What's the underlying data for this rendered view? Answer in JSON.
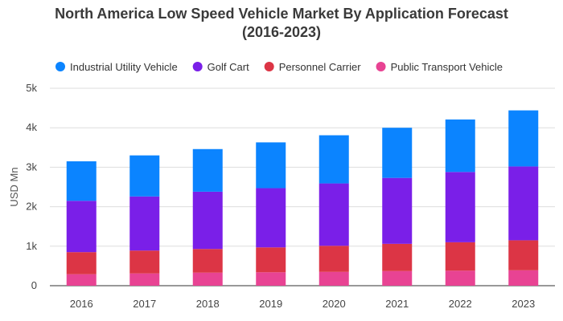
{
  "chart_data": {
    "type": "bar",
    "stacked": true,
    "title": "North America Low Speed Vehicle Market By Application Forecast",
    "subtitle": "(2016-2023)",
    "xlabel": "",
    "ylabel": "USD Mn",
    "ylim": [
      0,
      5000
    ],
    "yticks": [
      0,
      1000,
      2000,
      3000,
      4000,
      5000
    ],
    "ytick_labels": [
      "0",
      "1k",
      "2k",
      "3k",
      "4k",
      "5k"
    ],
    "categories": [
      "2016",
      "2017",
      "2018",
      "2019",
      "2020",
      "2021",
      "2022",
      "2023"
    ],
    "grid": true,
    "legend_position": "top",
    "series": [
      {
        "name": "Public Transport Vehicle",
        "color": "#e84393",
        "values": [
          290,
          310,
          330,
          340,
          350,
          370,
          380,
          390
        ]
      },
      {
        "name": "Personnel Carrier",
        "color": "#dc3545",
        "values": [
          560,
          580,
          600,
          630,
          660,
          690,
          720,
          760
        ]
      },
      {
        "name": "Golf Cart",
        "color": "#7a1fe8",
        "values": [
          1300,
          1370,
          1450,
          1500,
          1580,
          1670,
          1780,
          1870
        ]
      },
      {
        "name": "Industrial Utility Vehicle",
        "color": "#0b84ff",
        "values": [
          1000,
          1040,
          1080,
          1160,
          1220,
          1270,
          1330,
          1420
        ]
      }
    ],
    "legend_order": [
      "Industrial Utility Vehicle",
      "Golf Cart",
      "Personnel Carrier",
      "Public Transport Vehicle"
    ]
  }
}
